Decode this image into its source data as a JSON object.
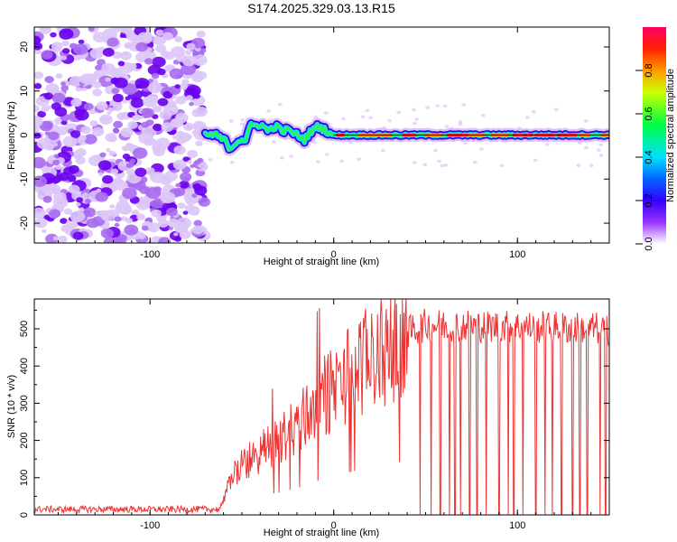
{
  "title": "S174.2025.329.03.13.R15",
  "chart_data": [
    {
      "type": "heatmap",
      "name": "spectrogram",
      "xlabel": "Height of straight line (km)",
      "ylabel": "Frequency (Hz)",
      "xlim": [
        -163,
        150
      ],
      "ylim": [
        -24.5,
        24.5
      ],
      "xticks": [
        -100,
        0,
        100
      ],
      "yticks": [
        20,
        10,
        0,
        -10,
        -20
      ],
      "noise_region_x": [
        -163,
        -70
      ],
      "signal_track": {
        "x": [
          -70,
          -65,
          -60,
          -56,
          -52,
          -48,
          -45,
          -40,
          -36,
          -32,
          -28,
          -24,
          -20,
          -16,
          -12,
          -8,
          -4,
          0,
          10,
          20,
          40,
          60,
          80,
          100,
          120,
          140,
          150
        ],
        "freq": [
          0,
          0,
          -1,
          -3,
          -1,
          -1,
          2,
          2.5,
          1,
          2,
          1,
          1,
          0,
          -1,
          1,
          2,
          1,
          0,
          0,
          0,
          0,
          0,
          0,
          0,
          0,
          0,
          0
        ]
      },
      "colorbar": {
        "label": "Normalized spectral amplitude",
        "range": [
          0,
          1
        ],
        "ticks": [
          0.0,
          0.2,
          0.4,
          0.6,
          0.8
        ],
        "tick_labels": [
          "0.0",
          "0.2",
          "0.4",
          "0.6",
          "0.8"
        ]
      }
    },
    {
      "type": "line",
      "name": "snr",
      "xlabel": "Height of straight line (km)",
      "ylabel": "SNR (10 * v/v)",
      "xlim": [
        -163,
        150
      ],
      "ylim": [
        0,
        580
      ],
      "xticks": [
        -100,
        0,
        100
      ],
      "yticks": [
        0,
        100,
        200,
        300,
        400,
        500
      ],
      "color": "#ee3333",
      "envelope": {
        "x": [
          -163,
          -100,
          -62,
          -55,
          -45,
          -30,
          -20,
          -10,
          0,
          10,
          20,
          30,
          40,
          50,
          60,
          100,
          150
        ],
        "mean": [
          15,
          15,
          15,
          110,
          150,
          200,
          240,
          300,
          340,
          390,
          420,
          450,
          490,
          510,
          510,
          505,
          500
        ]
      },
      "dropouts_x": [
        47,
        53,
        58,
        63,
        66,
        69,
        74,
        78,
        83,
        90,
        95,
        98,
        103,
        110,
        115,
        119,
        124,
        130,
        134,
        138,
        145,
        148
      ]
    }
  ]
}
